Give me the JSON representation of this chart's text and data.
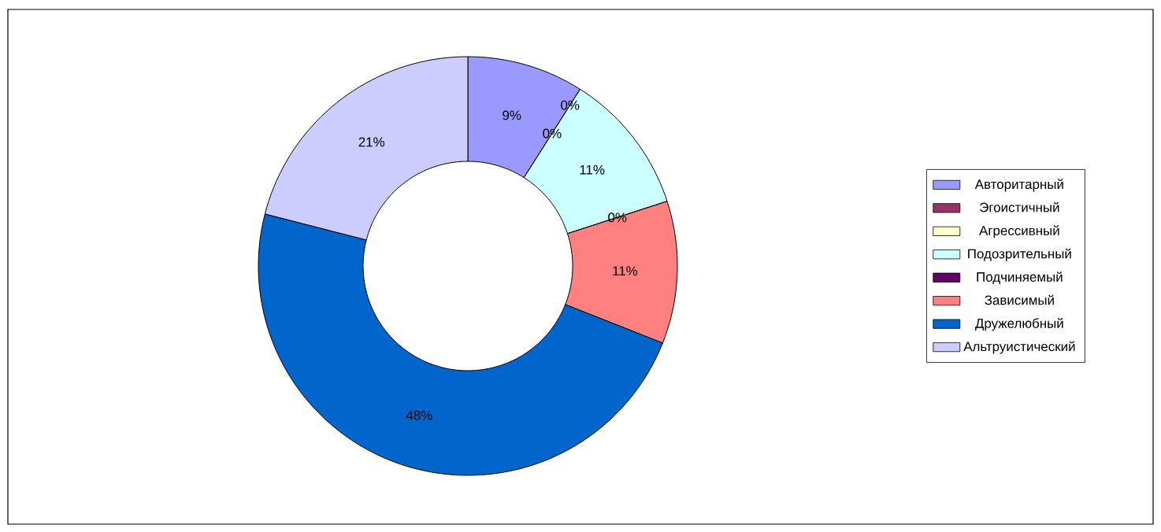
{
  "chart_data": {
    "type": "donut",
    "categories": [
      "Авторитарный",
      "Эгоистичный",
      "Агрессивный",
      "Подозрительный",
      "Подчиняемый",
      "Зависимый",
      "Дружелюбный",
      "Альтруистический"
    ],
    "values": [
      9,
      0,
      0,
      11,
      0,
      11,
      48,
      21
    ],
    "value_labels": [
      "9%",
      "0%",
      "0%",
      "11%",
      "0%",
      "11%",
      "48%",
      "21%"
    ],
    "colors": [
      "#9999ff",
      "#993366",
      "#ffffcc",
      "#ccffff",
      "#660066",
      "#ff8080",
      "#0066cc",
      "#ccccff"
    ],
    "legend": "right"
  }
}
